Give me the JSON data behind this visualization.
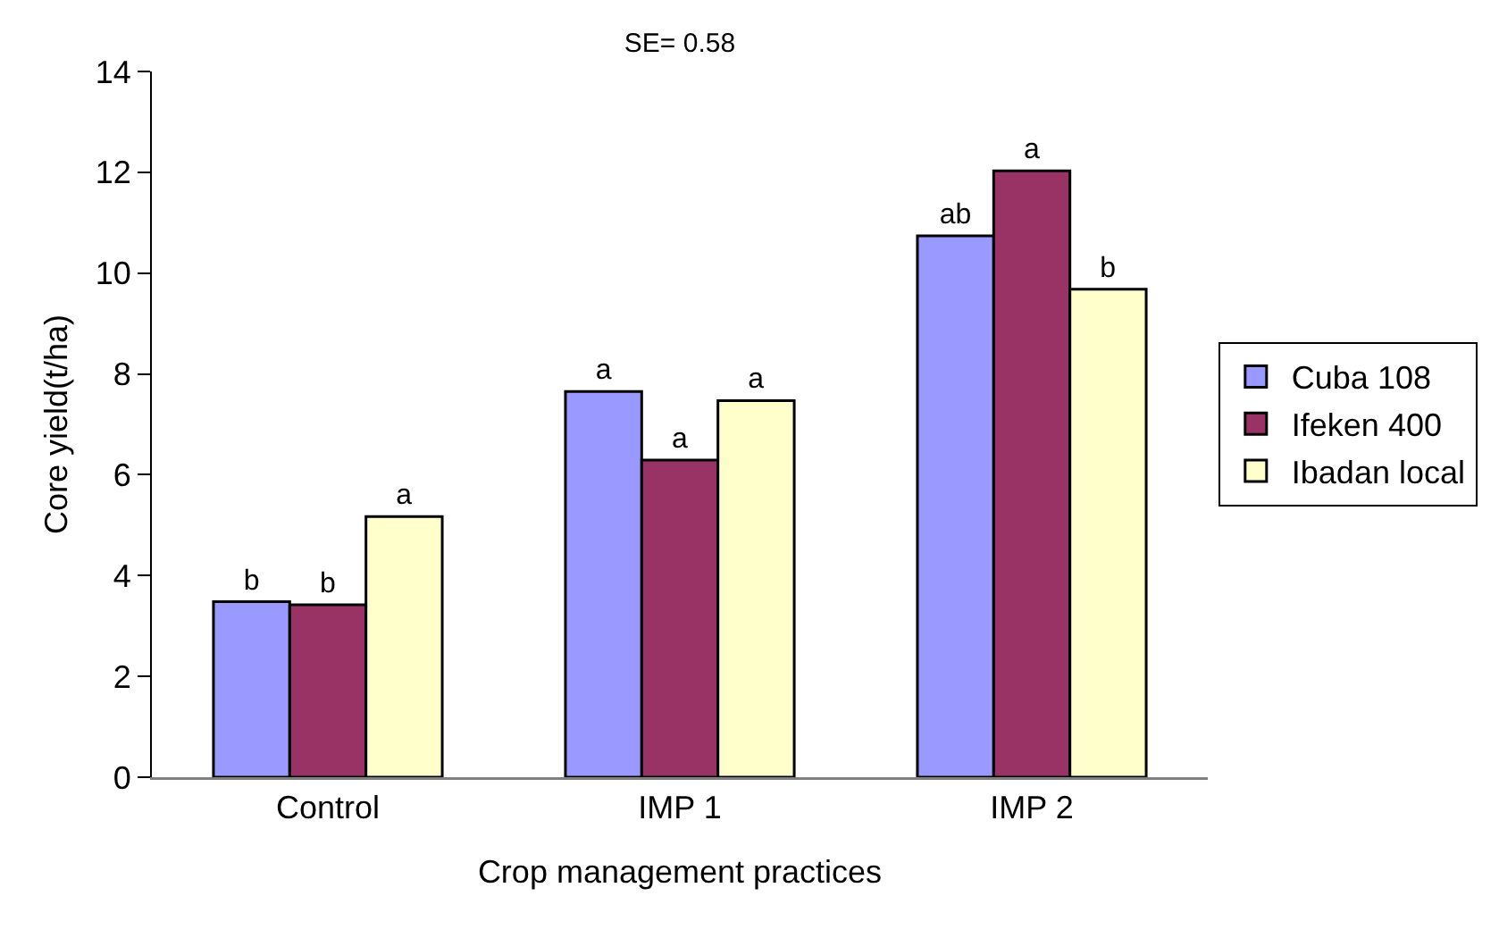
{
  "chart_data": {
    "type": "bar",
    "title": "SE= 0.58",
    "xlabel": "Crop management practices",
    "ylabel": "Core yield(t/ha)",
    "categories": [
      "Control",
      "IMP 1",
      "IMP 2"
    ],
    "series": [
      {
        "name": "Cuba 108",
        "color": "#9999ff",
        "values": [
          3.48,
          7.65,
          10.74
        ],
        "value_labels": [
          "b",
          "a",
          "ab"
        ]
      },
      {
        "name": "Ifeken 400",
        "color": "#993366",
        "values": [
          3.42,
          6.29,
          12.03
        ],
        "value_labels": [
          "b",
          "a",
          "a"
        ]
      },
      {
        "name": "Ibadan local",
        "color": "#ffffcc",
        "values": [
          5.17,
          7.47,
          9.68
        ],
        "value_labels": [
          "a",
          "a",
          "b"
        ]
      }
    ],
    "ylim": [
      0,
      14
    ],
    "yticks": [
      0,
      2,
      4,
      6,
      8,
      10,
      12,
      14
    ],
    "grid": false,
    "legend": "right"
  }
}
